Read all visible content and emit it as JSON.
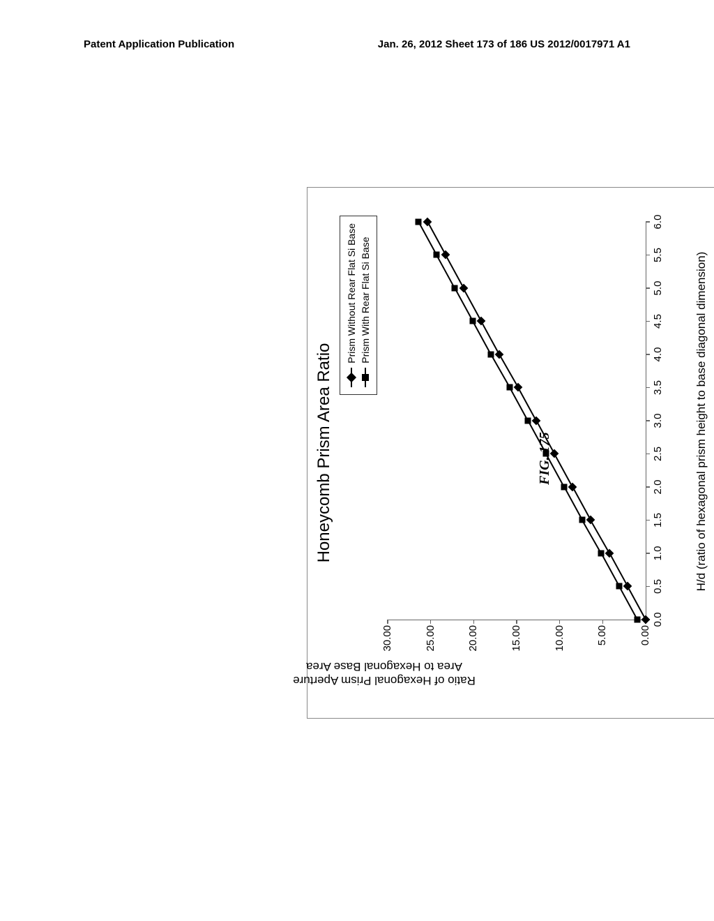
{
  "header": {
    "left": "Patent Application Publication",
    "right": "Jan. 26, 2012  Sheet 173 of 186   US 2012/0017971 A1"
  },
  "figure_caption": "FIG. 175",
  "chart": {
    "type": "line",
    "title": "Honeycomb Prism Area Ratio",
    "title_fontsize": 24,
    "background_color": "#ffffff",
    "axis_color": "#666666",
    "x_axis": {
      "label": "H/d (ratio of hexagonal prism height to base diagonal dimension)",
      "label_fontsize": 17,
      "min": 0.0,
      "max": 6.0,
      "tick_step": 0.5,
      "ticks": [
        "0.0",
        "0.5",
        "1.0",
        "1.5",
        "2.0",
        "2.5",
        "3.0",
        "3.5",
        "4.0",
        "4.5",
        "5.0",
        "5.5",
        "6.0"
      ],
      "tick_fontsize": 15
    },
    "y_axis": {
      "label_line1": "Ratio of Hexagonal Prism Aperture",
      "label_line2": "Area to Hexagonal Base Area",
      "label_fontsize": 17,
      "min": 0.0,
      "max": 30.0,
      "tick_step": 5.0,
      "ticks": [
        "0.00",
        "5.00",
        "10.00",
        "15.00",
        "20.00",
        "25.00",
        "30.00"
      ],
      "tick_fontsize": 15
    },
    "legend": {
      "position": "top-right",
      "items": [
        {
          "marker": "diamond",
          "label": "Prism Without Rear Flat Si Base"
        },
        {
          "marker": "square",
          "label": "Prism With Rear Flat Si Base"
        }
      ]
    },
    "series": [
      {
        "name": "Prism Without Rear Flat Si Base",
        "marker": "diamond",
        "color": "#000000",
        "line_width": 2,
        "x": [
          0.0,
          0.5,
          1.0,
          1.5,
          2.0,
          2.5,
          3.0,
          3.5,
          4.0,
          4.5,
          5.0,
          5.5,
          6.0
        ],
        "y": [
          0.0,
          2.1,
          4.2,
          6.4,
          8.5,
          10.6,
          12.7,
          14.8,
          17.0,
          19.1,
          21.2,
          23.3,
          25.4
        ]
      },
      {
        "name": "Prism With Rear Flat Si Base",
        "marker": "square",
        "color": "#000000",
        "line_width": 2,
        "x": [
          0.0,
          0.5,
          1.0,
          1.5,
          2.0,
          2.5,
          3.0,
          3.5,
          4.0,
          4.5,
          5.0,
          5.5,
          6.0
        ],
        "y": [
          1.0,
          3.1,
          5.2,
          7.4,
          9.5,
          11.6,
          13.7,
          15.8,
          18.0,
          20.1,
          22.2,
          24.3,
          26.4
        ]
      }
    ]
  }
}
